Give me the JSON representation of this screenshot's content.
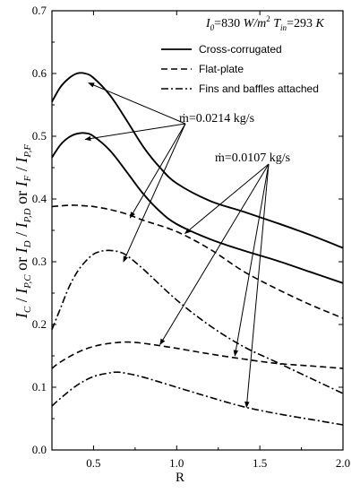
{
  "chart_data": {
    "type": "line",
    "xlabel": "R",
    "ylabel": "I_C / I_P,C or I_D / I_P,D or I_F / I_P,F",
    "xlim": [
      0.25,
      2.0
    ],
    "ylim": [
      0.0,
      0.7
    ],
    "xticks": [
      "0.5",
      "1.0",
      "1.5",
      "2.0"
    ],
    "yticks": [
      "0.0",
      "0.1",
      "0.2",
      "0.3",
      "0.4",
      "0.5",
      "0.6",
      "0.7"
    ],
    "conditions_text": "I0=830 W/m² Tin=293 K",
    "legend_position": "top-right",
    "legend": [
      {
        "label": "Cross-corrugated",
        "style": "solid"
      },
      {
        "label": "Flat-plate",
        "style": "dashed"
      },
      {
        "label": "Fins and baffles attached",
        "style": "dashdot"
      }
    ],
    "annotations": [
      {
        "text": "ṁ=0.0214 kg/s"
      },
      {
        "text": "ṁ=0.0107 kg/s"
      }
    ],
    "series": [
      {
        "style": "solid",
        "flow": "0.0214",
        "x": [
          0.25,
          0.3,
          0.35,
          0.4,
          0.45,
          0.5,
          0.6,
          0.7,
          0.8,
          0.9,
          1.0,
          1.2,
          1.4,
          1.6,
          1.8,
          2.0
        ],
        "values": [
          0.555,
          0.578,
          0.592,
          0.6,
          0.6,
          0.593,
          0.565,
          0.525,
          0.483,
          0.45,
          0.425,
          0.397,
          0.38,
          0.362,
          0.343,
          0.322
        ]
      },
      {
        "style": "solid",
        "flow": "0.0107",
        "x": [
          0.25,
          0.3,
          0.35,
          0.4,
          0.45,
          0.5,
          0.6,
          0.7,
          0.8,
          0.9,
          1.0,
          1.2,
          1.4,
          1.6,
          1.8,
          2.0
        ],
        "values": [
          0.466,
          0.486,
          0.498,
          0.504,
          0.505,
          0.5,
          0.477,
          0.443,
          0.408,
          0.38,
          0.36,
          0.336,
          0.318,
          0.302,
          0.284,
          0.266
        ]
      },
      {
        "style": "dashed",
        "flow": "0.0214",
        "x": [
          0.25,
          0.3,
          0.35,
          0.4,
          0.45,
          0.5,
          0.6,
          0.7,
          0.8,
          1.0,
          1.2,
          1.4,
          1.6,
          1.8,
          2.0
        ],
        "values": [
          0.388,
          0.389,
          0.39,
          0.39,
          0.389,
          0.388,
          0.383,
          0.376,
          0.366,
          0.348,
          0.32,
          0.285,
          0.257,
          0.232,
          0.21
        ]
      },
      {
        "style": "dashed",
        "flow": "0.0107",
        "x": [
          0.25,
          0.3,
          0.4,
          0.5,
          0.6,
          0.7,
          0.8,
          1.0,
          1.2,
          1.4,
          1.6,
          1.8,
          2.0
        ],
        "values": [
          0.13,
          0.14,
          0.155,
          0.165,
          0.17,
          0.172,
          0.17,
          0.162,
          0.153,
          0.145,
          0.138,
          0.134,
          0.13
        ]
      },
      {
        "style": "dashdot",
        "flow": "0.0214",
        "x": [
          0.25,
          0.3,
          0.35,
          0.4,
          0.45,
          0.5,
          0.55,
          0.6,
          0.65,
          0.7,
          0.8,
          1.0,
          1.2,
          1.4,
          1.6,
          1.8,
          2.0
        ],
        "values": [
          0.192,
          0.225,
          0.258,
          0.283,
          0.3,
          0.312,
          0.317,
          0.318,
          0.316,
          0.31,
          0.288,
          0.239,
          0.198,
          0.165,
          0.14,
          0.115,
          0.09
        ]
      },
      {
        "style": "dashdot",
        "flow": "0.0107",
        "x": [
          0.25,
          0.3,
          0.4,
          0.5,
          0.6,
          0.65,
          0.7,
          0.8,
          1.0,
          1.2,
          1.4,
          1.6,
          1.8,
          2.0
        ],
        "values": [
          0.07,
          0.082,
          0.103,
          0.117,
          0.123,
          0.124,
          0.122,
          0.116,
          0.1,
          0.084,
          0.069,
          0.058,
          0.049,
          0.04
        ]
      }
    ]
  }
}
